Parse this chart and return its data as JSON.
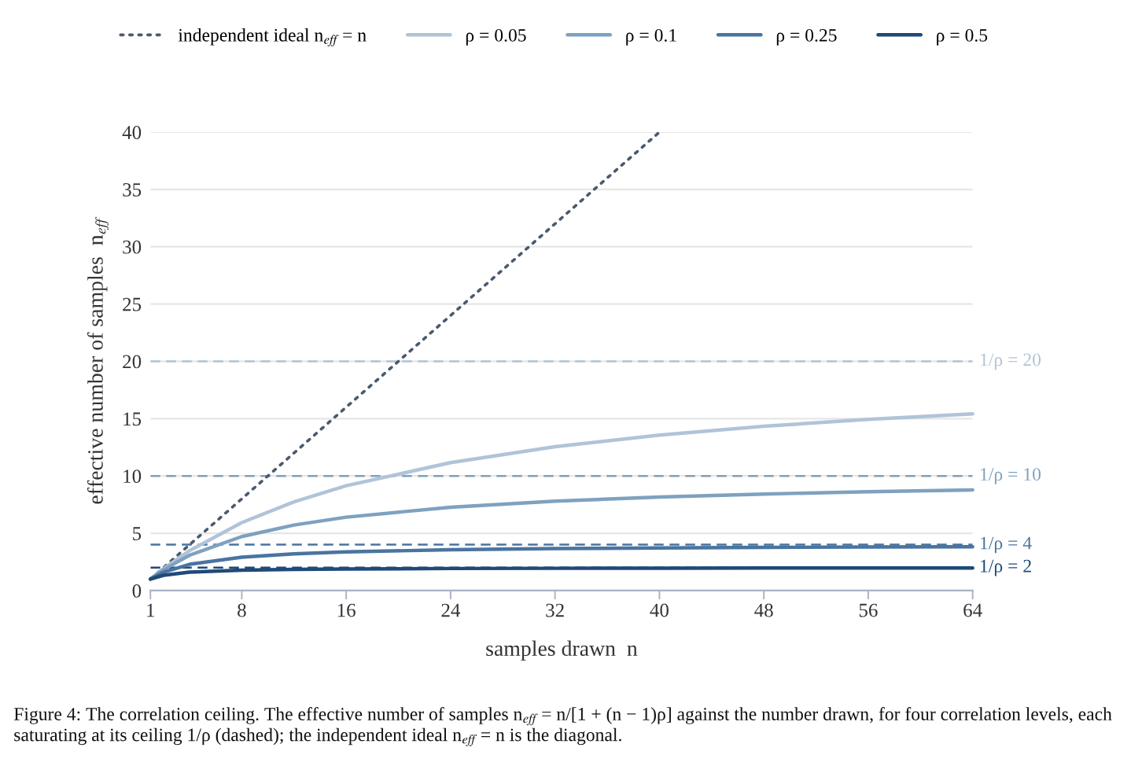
{
  "chart_data": {
    "type": "line",
    "xlabel": "samples drawn  n",
    "ylabel": "effective number of samples  n$_{eff}$",
    "xlim": [
      1,
      64
    ],
    "xticks": [
      1,
      8,
      16,
      24,
      32,
      40,
      48,
      56,
      64
    ],
    "ylim": [
      0,
      40
    ],
    "yticks": [
      0,
      5,
      10,
      15,
      20,
      25,
      30,
      35,
      40
    ],
    "grid": "y",
    "legend": "top",
    "line_style": "solid",
    "marker": "none",
    "series": [
      {
        "name": "independent ideal n$_{eff}$ = n",
        "color": "#4a5a6e",
        "line_style": "dotted",
        "x": [
          1,
          40
        ],
        "values": [
          1,
          40
        ]
      },
      {
        "name": "ρ = 0.05",
        "color": "#b0c4d8",
        "x": [
          1,
          2,
          4,
          8,
          12,
          16,
          24,
          32,
          40,
          48,
          56,
          64
        ],
        "values": [
          1,
          1.9,
          3.48,
          5.93,
          7.74,
          9.14,
          11.16,
          12.55,
          13.56,
          14.33,
          14.94,
          15.42
        ]
      },
      {
        "name": "ρ = 0.1",
        "color": "#7fa1c0",
        "x": [
          1,
          2,
          4,
          8,
          12,
          16,
          24,
          32,
          40,
          48,
          56,
          64
        ],
        "values": [
          1,
          1.82,
          3.08,
          4.71,
          5.71,
          6.4,
          7.27,
          7.8,
          8.16,
          8.42,
          8.62,
          8.77
        ]
      },
      {
        "name": "ρ = 0.25",
        "color": "#4a74a0",
        "x": [
          1,
          2,
          4,
          8,
          12,
          16,
          24,
          32,
          40,
          48,
          56,
          64
        ],
        "values": [
          1,
          1.6,
          2.29,
          2.91,
          3.2,
          3.37,
          3.56,
          3.66,
          3.72,
          3.76,
          3.8,
          3.82
        ]
      },
      {
        "name": "ρ = 0.5",
        "color": "#1f4a78",
        "x": [
          1,
          2,
          4,
          8,
          12,
          16,
          24,
          32,
          40,
          48,
          56,
          64
        ],
        "values": [
          1,
          1.33,
          1.6,
          1.78,
          1.85,
          1.88,
          1.92,
          1.94,
          1.95,
          1.96,
          1.96,
          1.97
        ]
      }
    ],
    "ref_lines": [
      {
        "axis": "y",
        "value": 20,
        "label": "1/ρ = 20",
        "color": "#b0c4d8",
        "line_style": "dashed"
      },
      {
        "axis": "y",
        "value": 10,
        "label": "1/ρ = 10",
        "color": "#7fa1c0",
        "line_style": "dashed"
      },
      {
        "axis": "y",
        "value": 4,
        "label": "1/ρ = 4",
        "color": "#4a74a0",
        "line_style": "dashed"
      },
      {
        "axis": "y",
        "value": 2,
        "label": "1/ρ = 2",
        "color": "#1f4a78",
        "line_style": "dashed"
      }
    ],
    "annotations": [
      "Figure 4: The correlation ceiling. The effective number of samples n$_{eff}$ = n/[1 + (n − 1)ρ] against the number drawn, for four correlation levels, each saturating at its ceiling 1/ρ (dashed); the independent ideal n$_{eff}$ = n is the diagonal."
    ]
  }
}
